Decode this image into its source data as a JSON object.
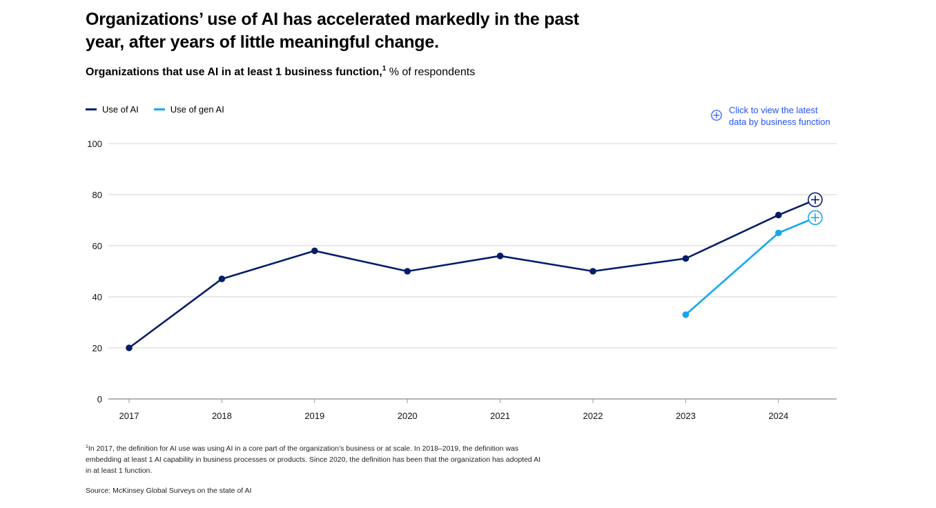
{
  "header": {
    "title": "Organizations’ use of AI has accelerated markedly in the past year, after years of little meaningful change.",
    "subtitle_bold": "Organizations that use AI in at least 1 business function,",
    "subtitle_sup": "1",
    "subtitle_rest": " % of respondents"
  },
  "legend": {
    "ai_label": "Use of AI",
    "genai_label": "Use of gen AI"
  },
  "cta": {
    "line1": "Click to view the latest",
    "line2": "data by business function"
  },
  "colors": {
    "ai": "#051c6b",
    "genai": "#12a9ec",
    "grid": "#d0d0d0",
    "axis": "#999999",
    "link": "#2251ff"
  },
  "chart_data": {
    "type": "line",
    "title": "Organizations that use AI in at least 1 business function",
    "xlabel": "",
    "ylabel": "% of respondents",
    "ylim": [
      0,
      100
    ],
    "yticks": [
      "0",
      "20",
      "40",
      "60",
      "80",
      "100"
    ],
    "categories": [
      "2017",
      "2018",
      "2019",
      "2020",
      "2021",
      "2022",
      "2023",
      "2024"
    ],
    "series": [
      {
        "name": "Use of AI",
        "values": [
          20,
          47,
          58,
          50,
          56,
          50,
          55,
          72
        ],
        "latest": 78
      },
      {
        "name": "Use of gen AI",
        "values": [
          null,
          null,
          null,
          null,
          null,
          null,
          33,
          65
        ],
        "latest": 71
      }
    ],
    "legend_position": "top-left",
    "grid": true
  },
  "footnote": {
    "sup": "1",
    "text": "In 2017, the definition for AI use was using AI in a core part of the organization’s business or at scale. In 2018–2019, the definition was embedding at least 1 AI capability in business processes or products. Since 2020, the definition has been that the organization has adopted AI in at least 1 function."
  },
  "source": "Source: McKinsey Global Surveys on the state of AI"
}
